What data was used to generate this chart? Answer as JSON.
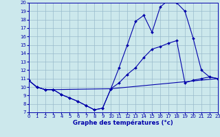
{
  "xlabel": "Graphe des températures (°c)",
  "xlim": [
    0,
    23
  ],
  "ylim": [
    7,
    20
  ],
  "xticks": [
    0,
    1,
    2,
    3,
    4,
    5,
    6,
    7,
    8,
    9,
    10,
    11,
    12,
    13,
    14,
    15,
    16,
    17,
    18,
    19,
    20,
    21,
    22,
    23
  ],
  "yticks": [
    7,
    8,
    9,
    10,
    11,
    12,
    13,
    14,
    15,
    16,
    17,
    18,
    19,
    20
  ],
  "bg_color": "#cce8ec",
  "grid_color": "#99bbcc",
  "line_color": "#0000aa",
  "line1_x": [
    0,
    1,
    2,
    3,
    4,
    5,
    6,
    7,
    8,
    9,
    10,
    11,
    12,
    13,
    14,
    15,
    16,
    17,
    18,
    19,
    20,
    21,
    22,
    23
  ],
  "line1_y": [
    10.8,
    10.0,
    9.7,
    9.7,
    9.1,
    8.7,
    8.3,
    7.8,
    7.3,
    7.5,
    9.8,
    12.3,
    15.0,
    17.8,
    18.5,
    16.5,
    19.5,
    20.3,
    20.0,
    19.0,
    15.8,
    12.0,
    11.2,
    11.0
  ],
  "line2_x": [
    0,
    1,
    2,
    3,
    4,
    5,
    6,
    7,
    8,
    9,
    10,
    11,
    12,
    13,
    14,
    15,
    16,
    17,
    18,
    19,
    20,
    21,
    22,
    23
  ],
  "line2_y": [
    10.8,
    10.0,
    9.7,
    9.7,
    9.1,
    8.7,
    8.3,
    7.8,
    7.3,
    7.5,
    9.8,
    10.5,
    11.5,
    12.3,
    13.5,
    14.5,
    14.8,
    15.2,
    15.5,
    10.5,
    10.8,
    11.0,
    11.2,
    11.0
  ],
  "line3_x": [
    0,
    1,
    2,
    3,
    10,
    23
  ],
  "line3_y": [
    10.8,
    10.0,
    9.7,
    9.7,
    9.8,
    11.0
  ],
  "tick_fontsize": 5.0,
  "xlabel_fontsize": 6.2,
  "marker_size": 2.0,
  "line_width": 0.8
}
